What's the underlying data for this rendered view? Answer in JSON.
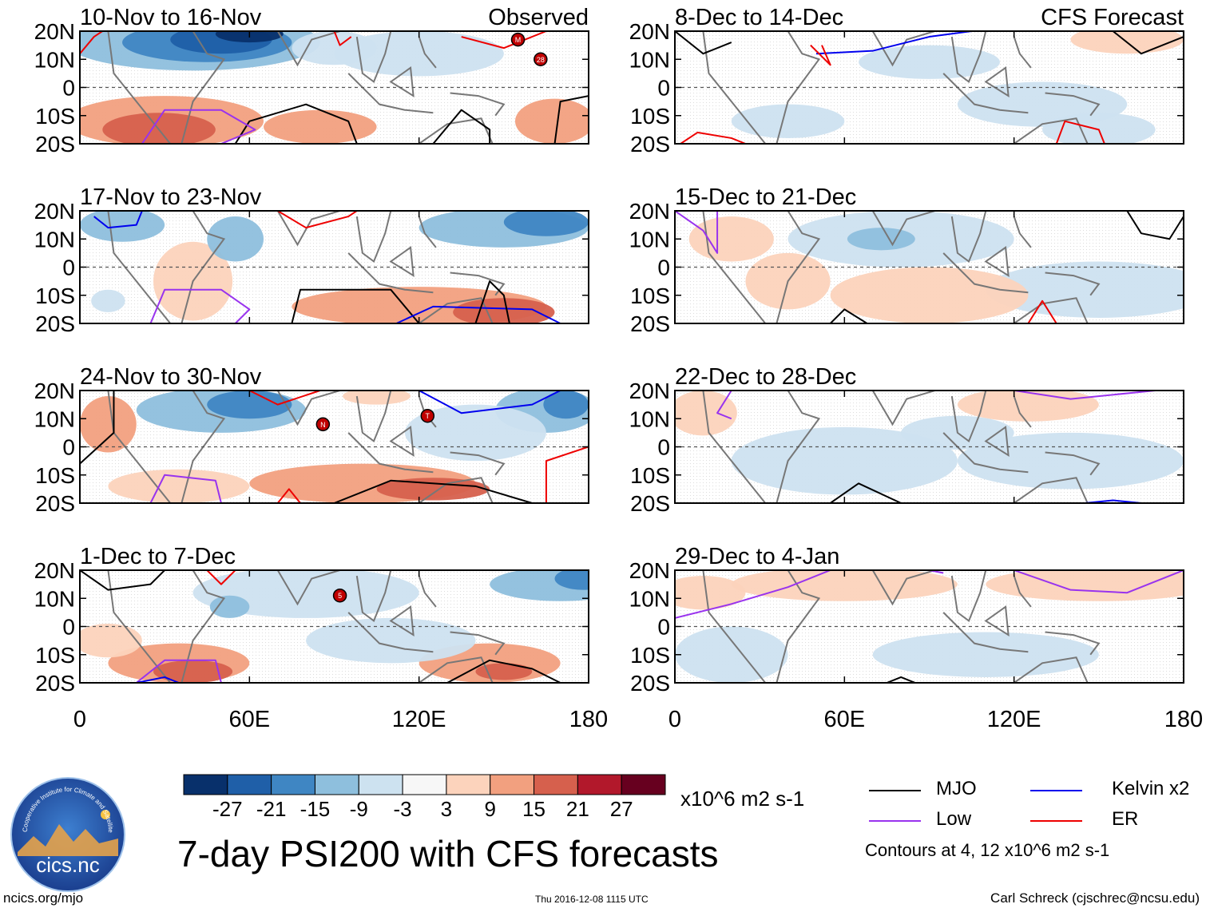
{
  "figure": {
    "title": "7-day PSI200 with CFS forecasts",
    "units": "x10^6 m2 s-1",
    "contour_note": "Contours at 4, 12 x10^6 m2 s-1",
    "footer_left": "ncics.org/mjo",
    "footer_mid": "Thu 2016-12-08 1115 UTC",
    "footer_right": "Carl Schreck (cjschrec@ncsu.edu)",
    "logo_text": "cics.nc",
    "logo_arc_text": "Cooperative Institute for Climate and Satellites"
  },
  "chart_data": {
    "type": "heatmap",
    "variable": "PSI200 (7-day mean streamfunction anomaly)",
    "column_headers": [
      "Observed",
      "CFS Forecast"
    ],
    "panels": [
      {
        "column": 0,
        "period": "10-Nov to 16-Nov",
        "label": "Observed"
      },
      {
        "column": 0,
        "period": "17-Nov to 23-Nov"
      },
      {
        "column": 0,
        "period": "24-Nov to 30-Nov"
      },
      {
        "column": 0,
        "period": "1-Dec to 7-Dec"
      },
      {
        "column": 1,
        "period": "8-Dec to 14-Dec",
        "label": "CFS Forecast"
      },
      {
        "column": 1,
        "period": "15-Dec to 21-Dec"
      },
      {
        "column": 1,
        "period": "22-Dec to 28-Dec"
      },
      {
        "column": 1,
        "period": "29-Dec to 4-Jan"
      }
    ],
    "y_ticks": [
      "20N",
      "10N",
      "0",
      "10S",
      "20S"
    ],
    "y_values": [
      20,
      10,
      0,
      -10,
      -20
    ],
    "x_ticks": [
      "0",
      "60E",
      "120E",
      "180"
    ],
    "x_values": [
      0,
      60,
      120,
      180
    ],
    "xlim": [
      0,
      180
    ],
    "ylim": [
      -20,
      20
    ],
    "colorbar": {
      "labels": [
        "-27",
        "-21",
        "-15",
        "-9",
        "-3",
        "3",
        "9",
        "15",
        "21",
        "27"
      ],
      "colors": [
        "#08306b",
        "#1f5fa8",
        "#3f86c3",
        "#8ebfdd",
        "#cde2f0",
        "#f7f7f7",
        "#fcd3bc",
        "#f2a07f",
        "#d6604d",
        "#b2182b",
        "#67001f"
      ]
    },
    "contours": {
      "levels": [
        4,
        12
      ],
      "legend": [
        {
          "name": "MJO",
          "color": "#000000"
        },
        {
          "name": "Kelvin x2",
          "color": "#0000ee"
        },
        {
          "name": "Low",
          "color": "#9933ee"
        },
        {
          "name": "ER",
          "color": "#ee0000"
        }
      ]
    },
    "storm_markers": [
      {
        "panel": 0,
        "label": "M",
        "lon": 155,
        "lat": 17
      },
      {
        "panel": 0,
        "label": "28",
        "lon": 163,
        "lat": 10
      },
      {
        "panel": 2,
        "label": "N",
        "lon": 86,
        "lat": 8
      },
      {
        "panel": 2,
        "label": "T",
        "lon": 123,
        "lat": 11
      },
      {
        "panel": 3,
        "label": "5",
        "lon": 92,
        "lat": 11
      }
    ]
  }
}
